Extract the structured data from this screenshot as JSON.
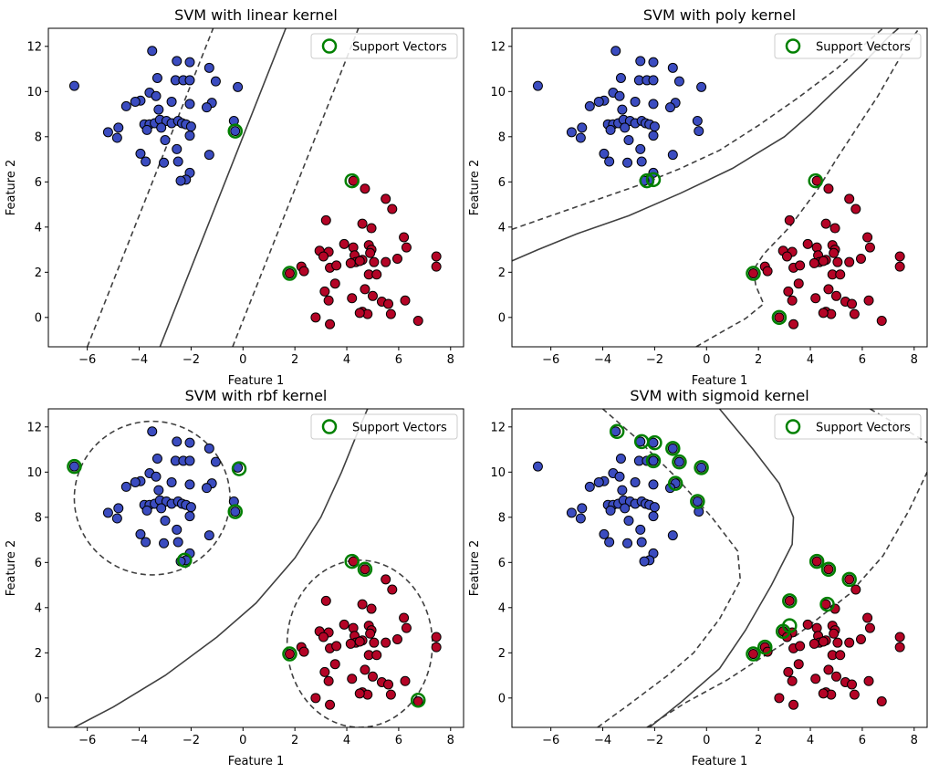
{
  "chart_data": [
    {
      "type": "scatter",
      "title": "SVM with linear kernel",
      "xlabel": "Feature 1",
      "ylabel": "Feature 2",
      "xlim": [
        -7.5,
        8.5
      ],
      "ylim": [
        -1.3,
        12.8
      ],
      "xticks": [
        -6,
        -4,
        -2,
        0,
        2,
        4,
        6,
        8
      ],
      "yticks": [
        0,
        2,
        4,
        6,
        8,
        10,
        12
      ],
      "legend": {
        "label": "Support Vectors",
        "position": "top-right"
      },
      "support_vectors": [
        [
          -0.3,
          8.25
        ],
        [
          4.2,
          6.05
        ],
        [
          1.8,
          1.95
        ]
      ],
      "boundary": {
        "kind": "linear",
        "a": -2.05,
        "b": 3.35,
        "decision": [
          [
            -3.2,
            -1.3
          ],
          [
            1.65,
            12.8
          ]
        ],
        "margins": [
          [
            [
              -6.0,
              -1.3
            ],
            [
              -1.15,
              12.8
            ]
          ],
          [
            [
              -0.4,
              -1.3
            ],
            [
              4.45,
              12.8
            ]
          ]
        ]
      }
    },
    {
      "type": "scatter",
      "title": "SVM with poly kernel",
      "xlabel": "Feature 1",
      "ylabel": "Feature 2",
      "xlim": [
        -7.5,
        8.5
      ],
      "ylim": [
        -1.3,
        12.8
      ],
      "xticks": [
        -6,
        -4,
        -2,
        0,
        2,
        4,
        6,
        8
      ],
      "yticks": [
        0,
        2,
        4,
        6,
        8,
        10,
        12
      ],
      "legend": {
        "label": "Support Vectors",
        "position": "top-right"
      },
      "support_vectors": [
        [
          -2.3,
          6.05
        ],
        [
          -2.05,
          6.1
        ],
        [
          4.2,
          6.05
        ],
        [
          1.8,
          1.95
        ],
        [
          2.8,
          0.0
        ]
      ],
      "boundary": {
        "kind": "poly",
        "decision": [
          [
            -7.5,
            2.5
          ],
          [
            -6.5,
            3.0
          ],
          [
            -5,
            3.7
          ],
          [
            -3,
            4.5
          ],
          [
            -1,
            5.5
          ],
          [
            1,
            6.6
          ],
          [
            2,
            7.3
          ],
          [
            3,
            8.0
          ],
          [
            4,
            9.0
          ],
          [
            5,
            10.1
          ],
          [
            6,
            11.2
          ],
          [
            7,
            12.4
          ],
          [
            7.4,
            12.8
          ]
        ],
        "margins": [
          [
            [
              -7.5,
              3.9
            ],
            [
              -6,
              4.5
            ],
            [
              -4,
              5.3
            ],
            [
              -2.5,
              5.9
            ],
            [
              -1,
              6.6
            ],
            [
              0.5,
              7.4
            ],
            [
              2,
              8.5
            ],
            [
              3.5,
              9.7
            ],
            [
              5,
              11.0
            ],
            [
              6,
              12.0
            ],
            [
              6.8,
              12.8
            ]
          ],
          [
            [
              -0.4,
              -1.3
            ],
            [
              0.5,
              -0.7
            ],
            [
              1.5,
              -0.05
            ],
            [
              2.2,
              0.6
            ],
            [
              1.9,
              1.4
            ],
            [
              1.8,
              2.1
            ],
            [
              2.2,
              2.8
            ],
            [
              3.2,
              4.0
            ],
            [
              4.3,
              5.7
            ],
            [
              5.0,
              7.0
            ],
            [
              5.8,
              8.4
            ],
            [
              6.6,
              9.8
            ],
            [
              7.3,
              11.2
            ],
            [
              8.0,
              12.5
            ],
            [
              8.2,
              12.8
            ]
          ]
        ]
      }
    },
    {
      "type": "scatter",
      "title": "SVM with rbf kernel",
      "xlabel": "Feature 1",
      "ylabel": "Feature 2",
      "xlim": [
        -7.5,
        8.5
      ],
      "ylim": [
        -1.3,
        12.8
      ],
      "xticks": [
        -6,
        -4,
        -2,
        0,
        2,
        4,
        6,
        8
      ],
      "yticks": [
        0,
        2,
        4,
        6,
        8,
        10,
        12
      ],
      "legend": {
        "label": "Support Vectors",
        "position": "top-right"
      },
      "support_vectors": [
        [
          -6.5,
          10.25
        ],
        [
          -0.15,
          10.15
        ],
        [
          -0.3,
          8.25
        ],
        [
          -2.25,
          6.1
        ],
        [
          4.2,
          6.05
        ],
        [
          4.7,
          5.7
        ],
        [
          1.8,
          1.95
        ],
        [
          6.75,
          -0.1
        ]
      ],
      "boundary": {
        "kind": "rbf",
        "decision": [
          [
            -6.5,
            -1.3
          ],
          [
            -5,
            -0.4
          ],
          [
            -3,
            1.0
          ],
          [
            -1,
            2.7
          ],
          [
            0.5,
            4.2
          ],
          [
            2,
            6.2
          ],
          [
            3,
            8.0
          ],
          [
            3.8,
            10.0
          ],
          [
            4.5,
            12.0
          ],
          [
            4.8,
            12.8
          ]
        ],
        "margins": [
          {
            "cx": -3.5,
            "cy": 8.85,
            "rx": 3.0,
            "ry": 3.4
          },
          {
            "cx": 4.5,
            "cy": 2.4,
            "rx": 2.8,
            "ry": 3.7
          }
        ]
      }
    },
    {
      "type": "scatter",
      "title": "SVM with sigmoid kernel",
      "xlabel": "Feature 1",
      "ylabel": "Feature 2",
      "xlim": [
        -7.5,
        8.5
      ],
      "ylim": [
        -1.3,
        12.8
      ],
      "xticks": [
        -6,
        -4,
        -2,
        0,
        2,
        4,
        6,
        8
      ],
      "yticks": [
        0,
        2,
        4,
        6,
        8,
        10,
        12
      ],
      "legend": {
        "label": "Support Vectors",
        "position": "top-right"
      },
      "support_vectors": [
        [
          -3.45,
          11.8
        ],
        [
          -2.5,
          11.35
        ],
        [
          -2.0,
          11.3
        ],
        [
          -2.05,
          10.5
        ],
        [
          -1.3,
          11.05
        ],
        [
          -1.05,
          10.45
        ],
        [
          -0.2,
          10.2
        ],
        [
          -1.2,
          9.5
        ],
        [
          -0.35,
          8.7
        ],
        [
          4.25,
          6.05
        ],
        [
          4.7,
          5.7
        ],
        [
          5.5,
          5.25
        ],
        [
          3.2,
          4.3
        ],
        [
          4.65,
          4.15
        ],
        [
          3.2,
          3.2
        ],
        [
          2.95,
          2.95
        ],
        [
          2.25,
          2.25
        ],
        [
          1.8,
          1.95
        ]
      ],
      "boundary": {
        "kind": "sigmoid",
        "decision": [
          [
            -2.2,
            -1.3
          ],
          [
            -1,
            -0.2
          ],
          [
            0.5,
            1.3
          ],
          [
            1.5,
            3.0
          ],
          [
            2.5,
            5.0
          ],
          [
            3.3,
            6.8
          ],
          [
            3.35,
            8.0
          ],
          [
            2.8,
            9.5
          ],
          [
            1.8,
            11.0
          ],
          [
            0.5,
            12.8
          ]
        ],
        "margins": [
          [
            [
              -4.2,
              -1.3
            ],
            [
              -3,
              -0.3
            ],
            [
              -1.5,
              1.0
            ],
            [
              -0.5,
              2.0
            ],
            [
              0.5,
              3.5
            ],
            [
              1.3,
              5.2
            ],
            [
              1.2,
              6.5
            ],
            [
              0.2,
              8.0
            ],
            [
              -1.2,
              9.8
            ],
            [
              -2.7,
              11.5
            ],
            [
              -4.0,
              12.8
            ]
          ],
          [
            [
              -2.3,
              -1.3
            ],
            [
              -0.8,
              -0.2
            ],
            [
              0.8,
              0.8
            ],
            [
              2.0,
              1.7
            ],
            [
              3.5,
              2.8
            ],
            [
              5.5,
              4.6
            ],
            [
              6.8,
              6.3
            ],
            [
              7.8,
              8.3
            ],
            [
              8.5,
              10.0
            ]
          ],
          [
            [
              6.3,
              12.8
            ],
            [
              7.5,
              12.0
            ],
            [
              8.5,
              11.3
            ]
          ]
        ]
      }
    }
  ],
  "class0_points": [
    [
      -6.5,
      10.25
    ],
    [
      -3.5,
      11.8
    ],
    [
      -2.55,
      11.35
    ],
    [
      -2.05,
      11.3
    ],
    [
      -1.3,
      11.05
    ],
    [
      -3.3,
      10.6
    ],
    [
      -2.6,
      10.5
    ],
    [
      -2.3,
      10.5
    ],
    [
      -2.05,
      10.5
    ],
    [
      -1.05,
      10.45
    ],
    [
      -0.2,
      10.2
    ],
    [
      -3.6,
      9.95
    ],
    [
      -3.35,
      9.8
    ],
    [
      -3.95,
      9.6
    ],
    [
      -4.15,
      9.55
    ],
    [
      -4.5,
      9.35
    ],
    [
      -3.25,
      9.2
    ],
    [
      -2.75,
      9.55
    ],
    [
      -2.05,
      9.45
    ],
    [
      -1.2,
      9.5
    ],
    [
      -1.4,
      9.3
    ],
    [
      -3.8,
      8.55
    ],
    [
      -3.6,
      8.55
    ],
    [
      -3.4,
      8.6
    ],
    [
      -3.2,
      8.75
    ],
    [
      -2.95,
      8.7
    ],
    [
      -2.75,
      8.6
    ],
    [
      -2.5,
      8.7
    ],
    [
      -2.35,
      8.6
    ],
    [
      -2.2,
      8.55
    ],
    [
      -2.0,
      8.45
    ],
    [
      -3.7,
      8.3
    ],
    [
      -3.15,
      8.4
    ],
    [
      -4.8,
      8.4
    ],
    [
      -5.2,
      8.2
    ],
    [
      -4.85,
      7.95
    ],
    [
      -3.0,
      7.85
    ],
    [
      -2.05,
      8.05
    ],
    [
      -0.35,
      8.7
    ],
    [
      -0.3,
      8.25
    ],
    [
      -2.55,
      7.45
    ],
    [
      -1.3,
      7.2
    ],
    [
      -3.95,
      7.25
    ],
    [
      -3.75,
      6.9
    ],
    [
      -3.05,
      6.85
    ],
    [
      -2.5,
      6.9
    ],
    [
      -2.05,
      6.4
    ],
    [
      -2.2,
      6.1
    ],
    [
      -2.4,
      6.05
    ]
  ],
  "class1_points": [
    [
      4.25,
      6.05
    ],
    [
      4.7,
      5.7
    ],
    [
      5.5,
      5.25
    ],
    [
      5.75,
      4.8
    ],
    [
      3.2,
      4.3
    ],
    [
      4.6,
      4.15
    ],
    [
      4.95,
      3.95
    ],
    [
      6.2,
      3.55
    ],
    [
      3.9,
      3.25
    ],
    [
      4.25,
      3.1
    ],
    [
      4.85,
      3.2
    ],
    [
      4.95,
      3.0
    ],
    [
      6.3,
      3.1
    ],
    [
      2.95,
      2.95
    ],
    [
      3.3,
      2.9
    ],
    [
      4.3,
      2.75
    ],
    [
      4.9,
      2.85
    ],
    [
      3.1,
      2.7
    ],
    [
      4.6,
      2.55
    ],
    [
      4.35,
      2.45
    ],
    [
      5.05,
      2.45
    ],
    [
      5.5,
      2.45
    ],
    [
      5.95,
      2.6
    ],
    [
      7.45,
      2.7
    ],
    [
      2.25,
      2.25
    ],
    [
      3.35,
      2.2
    ],
    [
      3.6,
      2.3
    ],
    [
      4.5,
      2.5
    ],
    [
      4.15,
      2.4
    ],
    [
      7.45,
      2.25
    ],
    [
      2.35,
      2.05
    ],
    [
      1.8,
      1.95
    ],
    [
      4.85,
      1.9
    ],
    [
      5.15,
      1.9
    ],
    [
      3.55,
      1.5
    ],
    [
      3.15,
      1.15
    ],
    [
      4.7,
      1.25
    ],
    [
      5.0,
      0.95
    ],
    [
      4.2,
      0.85
    ],
    [
      5.35,
      0.7
    ],
    [
      5.6,
      0.6
    ],
    [
      6.25,
      0.75
    ],
    [
      3.3,
      0.75
    ],
    [
      4.6,
      0.25
    ],
    [
      4.8,
      0.15
    ],
    [
      4.5,
      0.2
    ],
    [
      5.7,
      0.15
    ],
    [
      2.8,
      0.0
    ],
    [
      6.75,
      -0.15
    ],
    [
      3.35,
      -0.3
    ]
  ],
  "colors": {
    "class0": "#3b4cc0",
    "class1": "#b40426",
    "support_vector": "#008000",
    "boundary": "#404040"
  }
}
